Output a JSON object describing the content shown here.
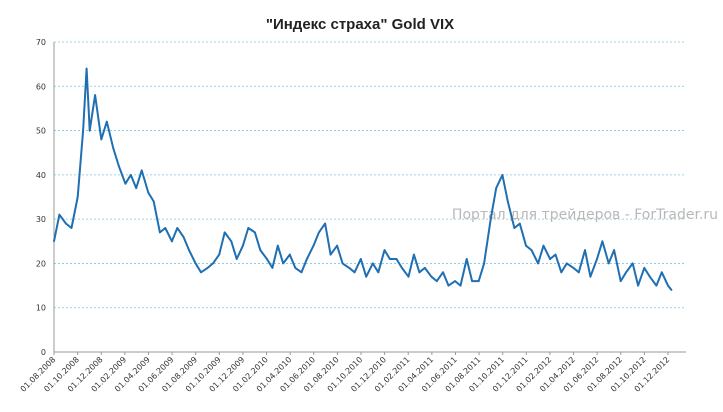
{
  "chart_data": {
    "type": "line",
    "title": "\"Индекс страха\" Gold VIX",
    "watermark": "Портал для трейдеров - ForTrader.ru",
    "xlabel": "",
    "ylabel": "",
    "ylim": [
      0,
      70
    ],
    "yticks": [
      0,
      10,
      20,
      30,
      40,
      50,
      60,
      70
    ],
    "grid": "horizontal, dashed",
    "legend": "none",
    "line_color": "#1f6fb2",
    "grid_color": "#7fc8e0",
    "x_tick_labels": [
      "01.08.2008",
      "01.10.2008",
      "01.12.2008",
      "01.02.2009",
      "01.04.2009",
      "01.06.2009",
      "01.08.2009",
      "01.10.2009",
      "01.12.2009",
      "01.02.2010",
      "01.04.2010",
      "01.06.2010",
      "01.08.2010",
      "01.10.2010",
      "01.12.2010",
      "01.02.2011",
      "01.04.2011",
      "01.06.2011",
      "01.08.2011",
      "01.10.2011",
      "01.12.2011",
      "01.02.2012",
      "01.04.2012",
      "01.06.2012",
      "01.08.2012",
      "01.10.2012",
      "01.12.2012"
    ],
    "x": [
      "2008-08-01",
      "2008-08-15",
      "2008-09-01",
      "2008-09-15",
      "2008-10-01",
      "2008-10-15",
      "2008-10-24",
      "2008-11-01",
      "2008-11-15",
      "2008-12-01",
      "2008-12-15",
      "2009-01-01",
      "2009-01-15",
      "2009-02-01",
      "2009-02-15",
      "2009-03-01",
      "2009-03-15",
      "2009-04-01",
      "2009-04-15",
      "2009-05-01",
      "2009-05-15",
      "2009-06-01",
      "2009-06-15",
      "2009-07-01",
      "2009-07-15",
      "2009-08-01",
      "2009-08-15",
      "2009-09-01",
      "2009-09-15",
      "2009-10-01",
      "2009-10-15",
      "2009-11-01",
      "2009-11-15",
      "2009-12-01",
      "2009-12-15",
      "2010-01-01",
      "2010-01-15",
      "2010-02-01",
      "2010-02-15",
      "2010-03-01",
      "2010-03-15",
      "2010-04-01",
      "2010-04-15",
      "2010-05-01",
      "2010-05-15",
      "2010-06-01",
      "2010-06-15",
      "2010-07-01",
      "2010-07-15",
      "2010-08-01",
      "2010-08-15",
      "2010-09-01",
      "2010-09-15",
      "2010-10-01",
      "2010-10-15",
      "2010-11-01",
      "2010-11-15",
      "2010-12-01",
      "2010-12-15",
      "2011-01-01",
      "2011-01-15",
      "2011-02-01",
      "2011-02-15",
      "2011-03-01",
      "2011-03-15",
      "2011-04-01",
      "2011-04-15",
      "2011-05-01",
      "2011-05-15",
      "2011-06-01",
      "2011-06-15",
      "2011-07-01",
      "2011-07-15",
      "2011-08-01",
      "2011-08-15",
      "2011-09-01",
      "2011-09-15",
      "2011-10-01",
      "2011-10-15",
      "2011-11-01",
      "2011-11-15",
      "2011-12-01",
      "2011-12-15",
      "2012-01-01",
      "2012-01-15",
      "2012-02-01",
      "2012-02-15",
      "2012-03-01",
      "2012-03-15",
      "2012-04-01",
      "2012-04-15",
      "2012-05-01",
      "2012-05-15",
      "2012-06-01",
      "2012-06-15",
      "2012-07-01",
      "2012-07-15",
      "2012-08-01",
      "2012-08-15",
      "2012-09-01",
      "2012-09-15",
      "2012-10-01",
      "2012-10-15",
      "2012-11-01",
      "2012-11-15",
      "2012-12-01",
      "2012-12-10"
    ],
    "series": [
      {
        "values": [
          25,
          31,
          29,
          28,
          35,
          50,
          64,
          50,
          58,
          48,
          52,
          46,
          42,
          38,
          40,
          37,
          41,
          36,
          34,
          27,
          28,
          25,
          28,
          26,
          23,
          20,
          18,
          19,
          20,
          22,
          27,
          25,
          21,
          24,
          28,
          27,
          23,
          21,
          19,
          24,
          20,
          22,
          19,
          18,
          21,
          24,
          27,
          29,
          22,
          24,
          20,
          19,
          18,
          21,
          17,
          20,
          18,
          23,
          21,
          21,
          19,
          17,
          22,
          18,
          19,
          17,
          16,
          18,
          15,
          16,
          15,
          21,
          16,
          16,
          20,
          30,
          37,
          40,
          34,
          28,
          29,
          24,
          23,
          20,
          24,
          21,
          22,
          18,
          20,
          19,
          18,
          23,
          17,
          21,
          25,
          20,
          23,
          16,
          18,
          20,
          15,
          19,
          17,
          15,
          18,
          15,
          14
        ]
      }
    ]
  }
}
